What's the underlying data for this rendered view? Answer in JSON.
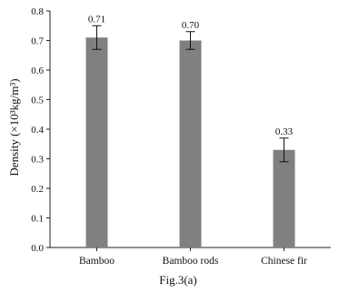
{
  "chart_data": {
    "type": "bar",
    "categories": [
      "Bamboo",
      "Bamboo rods",
      "Chinese fir"
    ],
    "values": [
      0.71,
      0.7,
      0.33
    ],
    "data_labels": [
      "0.71",
      "0.70",
      "0.33"
    ],
    "error_bars": [
      0.04,
      0.03,
      0.04
    ],
    "xlabel": "",
    "ylabel": "Density (×10³kg/m³)",
    "ylim": [
      0,
      0.8
    ],
    "yticks": [
      "0.0",
      "0.1",
      "0.2",
      "0.3",
      "0.4",
      "0.5",
      "0.6",
      "0.7",
      "0.8"
    ],
    "grid": false,
    "bar_color": "#808080",
    "caption": "Fig.3(a)"
  }
}
